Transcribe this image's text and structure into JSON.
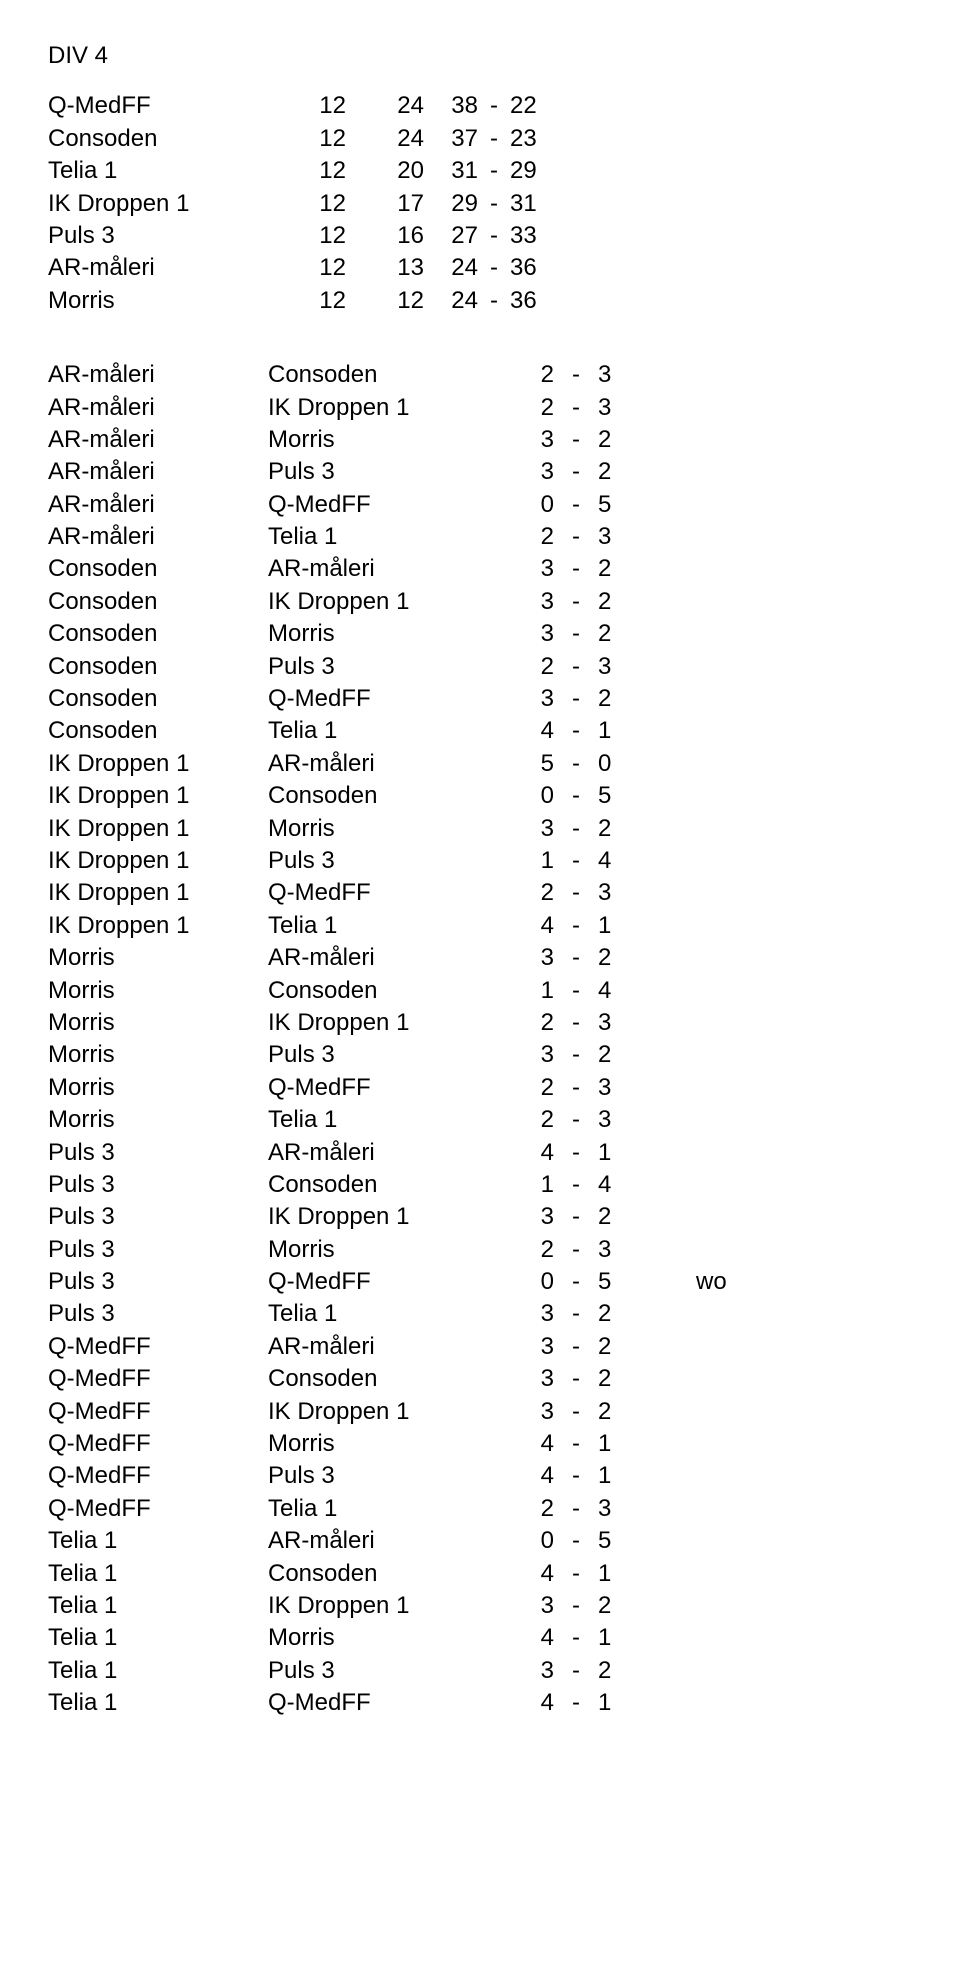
{
  "title": "DIV 4",
  "standings": [
    {
      "team": "Q-MedFF",
      "p": 12,
      "for": 38,
      "against": 22,
      "pts": 24
    },
    {
      "team": "Consoden",
      "p": 12,
      "for": 37,
      "against": 23,
      "pts": 24
    },
    {
      "team": "Telia 1",
      "p": 12,
      "for": 31,
      "against": 29,
      "pts": 20
    },
    {
      "team": "IK Droppen 1",
      "p": 12,
      "for": 29,
      "against": 31,
      "pts": 17
    },
    {
      "team": "Puls 3",
      "p": 12,
      "for": 27,
      "against": 33,
      "pts": 16
    },
    {
      "team": "AR-måleri",
      "p": 12,
      "for": 24,
      "against": 36,
      "pts": 13
    },
    {
      "team": "Morris",
      "p": 12,
      "for": 24,
      "against": 36,
      "pts": 12
    }
  ],
  "results": [
    {
      "home": "AR-måleri",
      "away": "Consoden",
      "s1": 2,
      "s2": 3,
      "note": ""
    },
    {
      "home": "AR-måleri",
      "away": "IK Droppen 1",
      "s1": 2,
      "s2": 3,
      "note": ""
    },
    {
      "home": "AR-måleri",
      "away": "Morris",
      "s1": 3,
      "s2": 2,
      "note": ""
    },
    {
      "home": "AR-måleri",
      "away": "Puls 3",
      "s1": 3,
      "s2": 2,
      "note": ""
    },
    {
      "home": "AR-måleri",
      "away": "Q-MedFF",
      "s1": 0,
      "s2": 5,
      "note": ""
    },
    {
      "home": "AR-måleri",
      "away": "Telia 1",
      "s1": 2,
      "s2": 3,
      "note": ""
    },
    {
      "home": "Consoden",
      "away": "AR-måleri",
      "s1": 3,
      "s2": 2,
      "note": ""
    },
    {
      "home": "Consoden",
      "away": "IK Droppen 1",
      "s1": 3,
      "s2": 2,
      "note": ""
    },
    {
      "home": "Consoden",
      "away": "Morris",
      "s1": 3,
      "s2": 2,
      "note": ""
    },
    {
      "home": "Consoden",
      "away": "Puls 3",
      "s1": 2,
      "s2": 3,
      "note": ""
    },
    {
      "home": "Consoden",
      "away": "Q-MedFF",
      "s1": 3,
      "s2": 2,
      "note": ""
    },
    {
      "home": "Consoden",
      "away": "Telia 1",
      "s1": 4,
      "s2": 1,
      "note": ""
    },
    {
      "home": "IK Droppen 1",
      "away": "AR-måleri",
      "s1": 5,
      "s2": 0,
      "note": ""
    },
    {
      "home": "IK Droppen 1",
      "away": "Consoden",
      "s1": 0,
      "s2": 5,
      "note": ""
    },
    {
      "home": "IK Droppen 1",
      "away": "Morris",
      "s1": 3,
      "s2": 2,
      "note": ""
    },
    {
      "home": "IK Droppen 1",
      "away": "Puls 3",
      "s1": 1,
      "s2": 4,
      "note": ""
    },
    {
      "home": "IK Droppen 1",
      "away": "Q-MedFF",
      "s1": 2,
      "s2": 3,
      "note": ""
    },
    {
      "home": "IK Droppen 1",
      "away": "Telia 1",
      "s1": 4,
      "s2": 1,
      "note": ""
    },
    {
      "home": "Morris",
      "away": "AR-måleri",
      "s1": 3,
      "s2": 2,
      "note": ""
    },
    {
      "home": "Morris",
      "away": "Consoden",
      "s1": 1,
      "s2": 4,
      "note": ""
    },
    {
      "home": "Morris",
      "away": "IK Droppen 1",
      "s1": 2,
      "s2": 3,
      "note": ""
    },
    {
      "home": "Morris",
      "away": "Puls 3",
      "s1": 3,
      "s2": 2,
      "note": ""
    },
    {
      "home": "Morris",
      "away": "Q-MedFF",
      "s1": 2,
      "s2": 3,
      "note": ""
    },
    {
      "home": "Morris",
      "away": "Telia 1",
      "s1": 2,
      "s2": 3,
      "note": ""
    },
    {
      "home": "Puls 3",
      "away": "AR-måleri",
      "s1": 4,
      "s2": 1,
      "note": ""
    },
    {
      "home": "Puls 3",
      "away": "Consoden",
      "s1": 1,
      "s2": 4,
      "note": ""
    },
    {
      "home": "Puls 3",
      "away": "IK Droppen 1",
      "s1": 3,
      "s2": 2,
      "note": ""
    },
    {
      "home": "Puls 3",
      "away": "Morris",
      "s1": 2,
      "s2": 3,
      "note": ""
    },
    {
      "home": "Puls 3",
      "away": "Q-MedFF",
      "s1": 0,
      "s2": 5,
      "note": "wo"
    },
    {
      "home": "Puls 3",
      "away": "Telia 1",
      "s1": 3,
      "s2": 2,
      "note": ""
    },
    {
      "home": "Q-MedFF",
      "away": "AR-måleri",
      "s1": 3,
      "s2": 2,
      "note": ""
    },
    {
      "home": "Q-MedFF",
      "away": "Consoden",
      "s1": 3,
      "s2": 2,
      "note": ""
    },
    {
      "home": "Q-MedFF",
      "away": "IK Droppen 1",
      "s1": 3,
      "s2": 2,
      "note": ""
    },
    {
      "home": "Q-MedFF",
      "away": "Morris",
      "s1": 4,
      "s2": 1,
      "note": ""
    },
    {
      "home": "Q-MedFF",
      "away": "Puls 3",
      "s1": 4,
      "s2": 1,
      "note": ""
    },
    {
      "home": "Q-MedFF",
      "away": "Telia 1",
      "s1": 2,
      "s2": 3,
      "note": ""
    },
    {
      "home": "Telia 1",
      "away": "AR-måleri",
      "s1": 0,
      "s2": 5,
      "note": ""
    },
    {
      "home": "Telia 1",
      "away": "Consoden",
      "s1": 4,
      "s2": 1,
      "note": ""
    },
    {
      "home": "Telia 1",
      "away": "IK Droppen 1",
      "s1": 3,
      "s2": 2,
      "note": ""
    },
    {
      "home": "Telia 1",
      "away": "Morris",
      "s1": 4,
      "s2": 1,
      "note": ""
    },
    {
      "home": "Telia 1",
      "away": "Puls 3",
      "s1": 3,
      "s2": 2,
      "note": ""
    },
    {
      "home": "Telia 1",
      "away": "Q-MedFF",
      "s1": 4,
      "s2": 1,
      "note": ""
    }
  ],
  "score_separator": "-"
}
